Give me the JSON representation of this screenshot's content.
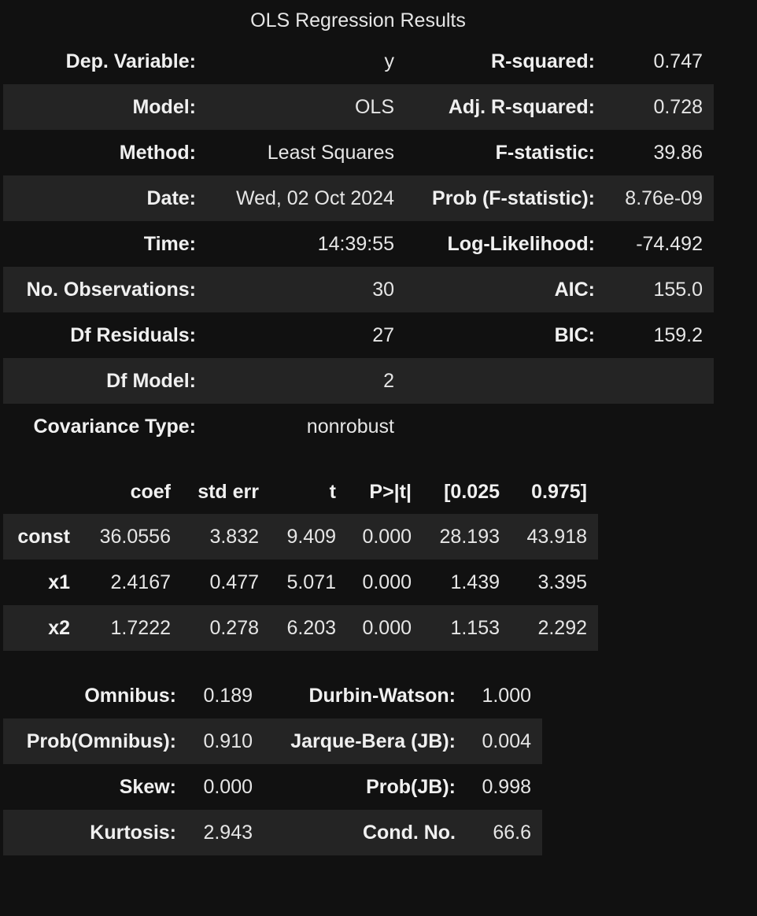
{
  "caption": "OLS Regression Results",
  "summary": [
    {
      "l1": "Dep. Variable:",
      "v1": "y",
      "l2": "R-squared:",
      "v2": "0.747"
    },
    {
      "l1": "Model:",
      "v1": "OLS",
      "l2": "Adj. R-squared:",
      "v2": "0.728"
    },
    {
      "l1": "Method:",
      "v1": "Least Squares",
      "l2": "F-statistic:",
      "v2": "39.86"
    },
    {
      "l1": "Date:",
      "v1": "Wed, 02 Oct 2024",
      "l2": "Prob (F-statistic):",
      "v2": "8.76e-09"
    },
    {
      "l1": "Time:",
      "v1": "14:39:55",
      "l2": "Log-Likelihood:",
      "v2": "-74.492"
    },
    {
      "l1": "No. Observations:",
      "v1": "30",
      "l2": "AIC:",
      "v2": "155.0"
    },
    {
      "l1": "Df Residuals:",
      "v1": "27",
      "l2": "BIC:",
      "v2": "159.2"
    },
    {
      "l1": "Df Model:",
      "v1": "2",
      "l2": "",
      "v2": ""
    },
    {
      "l1": "Covariance Type:",
      "v1": "nonrobust",
      "l2": "",
      "v2": ""
    }
  ],
  "coef": {
    "headers": [
      "",
      "coef",
      "std err",
      "t",
      "P>|t|",
      "[0.025",
      "0.975]"
    ],
    "rows": [
      [
        "const",
        "36.0556",
        "3.832",
        "9.409",
        "0.000",
        "28.193",
        "43.918"
      ],
      [
        "x1",
        "2.4167",
        "0.477",
        "5.071",
        "0.000",
        "1.439",
        "3.395"
      ],
      [
        "x2",
        "1.7222",
        "0.278",
        "6.203",
        "0.000",
        "1.153",
        "2.292"
      ]
    ]
  },
  "diagnostics": [
    {
      "l1": "Omnibus:",
      "v1": "0.189",
      "l2": "Durbin-Watson:",
      "v2": "1.000"
    },
    {
      "l1": "Prob(Omnibus):",
      "v1": "0.910",
      "l2": "Jarque-Bera (JB):",
      "v2": "0.004"
    },
    {
      "l1": "Skew:",
      "v1": "0.000",
      "l2": "Prob(JB):",
      "v2": "0.998"
    },
    {
      "l1": "Kurtosis:",
      "v1": "2.943",
      "l2": "Cond. No.",
      "v2": "66.6"
    }
  ]
}
